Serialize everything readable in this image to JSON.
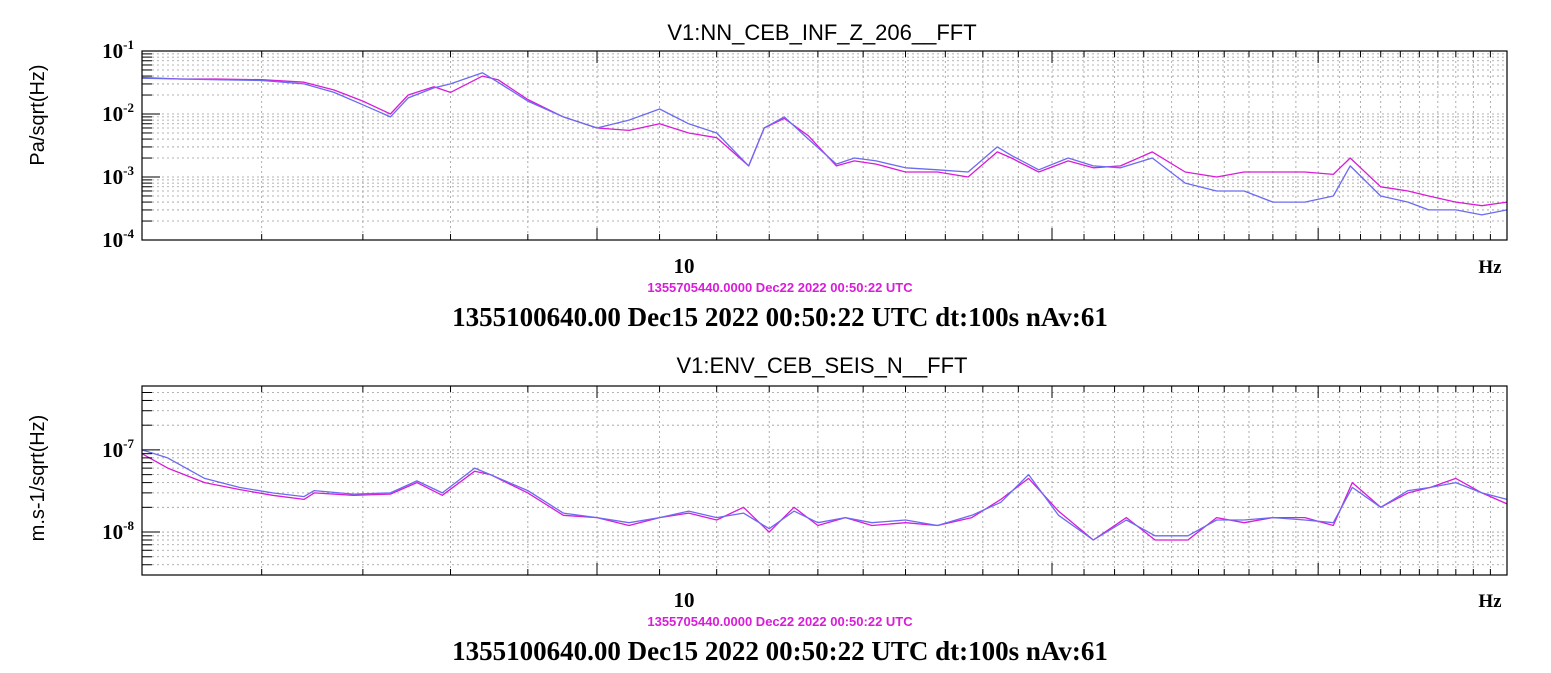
{
  "colors": {
    "reference": "#d81cd8",
    "current": "#6b6bf2",
    "text": "#000000",
    "grid": "#9a9a9a"
  },
  "chart_data": [
    {
      "type": "line",
      "title": "V1:NN_CEB_INF_Z_206__FFT",
      "ylabel": "Pa/sqrt(Hz)",
      "xunit": "Hz",
      "xscale": "log",
      "yscale": "log",
      "xlim": [
        5,
        40
      ],
      "ylim": [
        0.0001,
        0.1
      ],
      "x_ticks": [
        {
          "value": 10,
          "label": "10"
        }
      ],
      "y_ticks": [
        {
          "value": 0.1,
          "base": "10",
          "exp": "-1"
        },
        {
          "value": 0.01,
          "base": "10",
          "exp": "-2"
        },
        {
          "value": 0.001,
          "base": "10",
          "exp": "-3"
        },
        {
          "value": 0.0001,
          "base": "10",
          "exp": "-4"
        }
      ],
      "grid": true,
      "reference_time": "1355705440.0000 Dec22 2022 00:50:22 UTC",
      "time_label": "1355100640.00 Dec15 2022 00:50:22 UTC dt:100s nAv:61",
      "series": [
        {
          "role": "reference",
          "color": "#d81cd8",
          "x": [
            5.0,
            5.3,
            5.6,
            6.0,
            6.4,
            6.7,
            7.0,
            7.3,
            7.5,
            7.8,
            8.0,
            8.4,
            8.6,
            9.0,
            9.5,
            10.0,
            10.5,
            11.0,
            11.5,
            12.0,
            12.6,
            12.9,
            13.3,
            13.8,
            14.4,
            14.8,
            15.3,
            16.0,
            16.8,
            17.6,
            18.4,
            18.8,
            19.6,
            20.5,
            21.3,
            22.2,
            23.3,
            24.5,
            25.7,
            26.8,
            28.0,
            29.4,
            30.7,
            31.5,
            33.0,
            34.4,
            35.5,
            37.0,
            38.5,
            40.0
          ],
          "y": [
            0.038,
            0.036,
            0.036,
            0.035,
            0.032,
            0.024,
            0.016,
            0.01,
            0.02,
            0.027,
            0.022,
            0.04,
            0.035,
            0.017,
            0.009,
            0.006,
            0.0055,
            0.007,
            0.005,
            0.0042,
            0.0015,
            0.006,
            0.0085,
            0.0045,
            0.0015,
            0.0018,
            0.0016,
            0.0012,
            0.0012,
            0.001,
            0.0025,
            0.002,
            0.0012,
            0.0018,
            0.0014,
            0.0015,
            0.0025,
            0.0012,
            0.001,
            0.0012,
            0.0012,
            0.0012,
            0.0011,
            0.002,
            0.0007,
            0.0006,
            0.0005,
            0.0004,
            0.00035,
            0.0004
          ]
        },
        {
          "role": "current",
          "color": "#6b6bf2",
          "x": [
            5.0,
            5.3,
            5.6,
            6.0,
            6.4,
            6.7,
            7.0,
            7.3,
            7.5,
            7.8,
            8.0,
            8.4,
            8.6,
            9.0,
            9.5,
            10.0,
            10.5,
            11.0,
            11.5,
            12.0,
            12.6,
            12.9,
            13.3,
            13.8,
            14.4,
            14.8,
            15.3,
            16.0,
            16.8,
            17.6,
            18.4,
            18.8,
            19.6,
            20.5,
            21.3,
            22.2,
            23.3,
            24.5,
            25.7,
            26.8,
            28.0,
            29.4,
            30.7,
            31.5,
            33.0,
            34.4,
            35.5,
            37.0,
            38.5,
            40.0
          ],
          "y": [
            0.037,
            0.036,
            0.035,
            0.034,
            0.03,
            0.022,
            0.014,
            0.009,
            0.018,
            0.026,
            0.03,
            0.045,
            0.032,
            0.016,
            0.009,
            0.006,
            0.008,
            0.012,
            0.007,
            0.005,
            0.0015,
            0.006,
            0.009,
            0.004,
            0.0016,
            0.002,
            0.0018,
            0.0014,
            0.0013,
            0.0012,
            0.003,
            0.0022,
            0.0013,
            0.002,
            0.0015,
            0.0014,
            0.002,
            0.0008,
            0.0006,
            0.0006,
            0.0004,
            0.0004,
            0.0005,
            0.0015,
            0.0005,
            0.0004,
            0.0003,
            0.0003,
            0.00025,
            0.0003
          ]
        }
      ]
    },
    {
      "type": "line",
      "title": "V1:ENV_CEB_SEIS_N__FFT",
      "ylabel": "m.s-1/sqrt(Hz)",
      "xunit": "Hz",
      "xscale": "log",
      "yscale": "log",
      "xlim": [
        5,
        40
      ],
      "ylim": [
        3e-09,
        6e-07
      ],
      "x_ticks": [
        {
          "value": 10,
          "label": "10"
        }
      ],
      "y_ticks": [
        {
          "value": 1e-07,
          "base": "10",
          "exp": "-7"
        },
        {
          "value": 1e-08,
          "base": "10",
          "exp": "-8"
        }
      ],
      "grid": true,
      "reference_time": "1355705440.0000 Dec22 2022 00:50:22 UTC",
      "time_label": "1355100640.00 Dec15 2022 00:50:22 UTC dt:100s nAv:61",
      "series": [
        {
          "role": "reference",
          "color": "#d81cd8",
          "x": [
            5.0,
            5.2,
            5.5,
            5.8,
            6.1,
            6.4,
            6.5,
            6.9,
            7.3,
            7.6,
            7.9,
            8.3,
            8.5,
            9.0,
            9.5,
            10.0,
            10.5,
            11.0,
            11.5,
            12.0,
            12.5,
            13.0,
            13.5,
            14.0,
            14.6,
            15.2,
            16.0,
            16.8,
            17.7,
            18.5,
            19.3,
            20.2,
            21.3,
            22.4,
            23.4,
            24.6,
            25.7,
            26.8,
            28.0,
            29.4,
            30.7,
            31.6,
            33.0,
            34.4,
            35.6,
            37.0,
            38.5,
            40.0
          ],
          "y": [
            9e-08,
            6e-08,
            4e-08,
            3.3e-08,
            2.8e-08,
            2.5e-08,
            3e-08,
            2.8e-08,
            2.9e-08,
            4e-08,
            2.8e-08,
            5.5e-08,
            5e-08,
            3e-08,
            1.6e-08,
            1.5e-08,
            1.2e-08,
            1.5e-08,
            1.7e-08,
            1.4e-08,
            2e-08,
            1e-08,
            2e-08,
            1.2e-08,
            1.5e-08,
            1.2e-08,
            1.3e-08,
            1.2e-08,
            1.5e-08,
            2.5e-08,
            4.5e-08,
            1.8e-08,
            8e-09,
            1.5e-08,
            8e-09,
            8e-09,
            1.5e-08,
            1.3e-08,
            1.5e-08,
            1.5e-08,
            1.2e-08,
            4e-08,
            2e-08,
            3e-08,
            3.5e-08,
            4.5e-08,
            3e-08,
            2.2e-08
          ]
        },
        {
          "role": "current",
          "color": "#6b6bf2",
          "x": [
            5.0,
            5.2,
            5.5,
            5.8,
            6.1,
            6.4,
            6.5,
            6.9,
            7.3,
            7.6,
            7.9,
            8.3,
            8.5,
            9.0,
            9.5,
            10.0,
            10.5,
            11.0,
            11.5,
            12.0,
            12.5,
            13.0,
            13.5,
            14.0,
            14.6,
            15.2,
            16.0,
            16.8,
            17.7,
            18.5,
            19.3,
            20.2,
            21.3,
            22.4,
            23.4,
            24.6,
            25.7,
            26.8,
            28.0,
            29.4,
            30.7,
            31.6,
            33.0,
            34.4,
            35.6,
            37.0,
            38.5,
            40.0
          ],
          "y": [
            1e-07,
            8e-08,
            4.5e-08,
            3.5e-08,
            3e-08,
            2.7e-08,
            3.2e-08,
            2.9e-08,
            3e-08,
            4.2e-08,
            3e-08,
            6e-08,
            5e-08,
            3.2e-08,
            1.7e-08,
            1.5e-08,
            1.3e-08,
            1.5e-08,
            1.8e-08,
            1.5e-08,
            1.7e-08,
            1.1e-08,
            1.8e-08,
            1.3e-08,
            1.5e-08,
            1.3e-08,
            1.4e-08,
            1.2e-08,
            1.6e-08,
            2.3e-08,
            5e-08,
            1.6e-08,
            8e-09,
            1.4e-08,
            9e-09,
            9e-09,
            1.4e-08,
            1.4e-08,
            1.5e-08,
            1.4e-08,
            1.3e-08,
            3.5e-08,
            2e-08,
            3.2e-08,
            3.5e-08,
            4e-08,
            3e-08,
            2.5e-08
          ]
        }
      ]
    }
  ]
}
